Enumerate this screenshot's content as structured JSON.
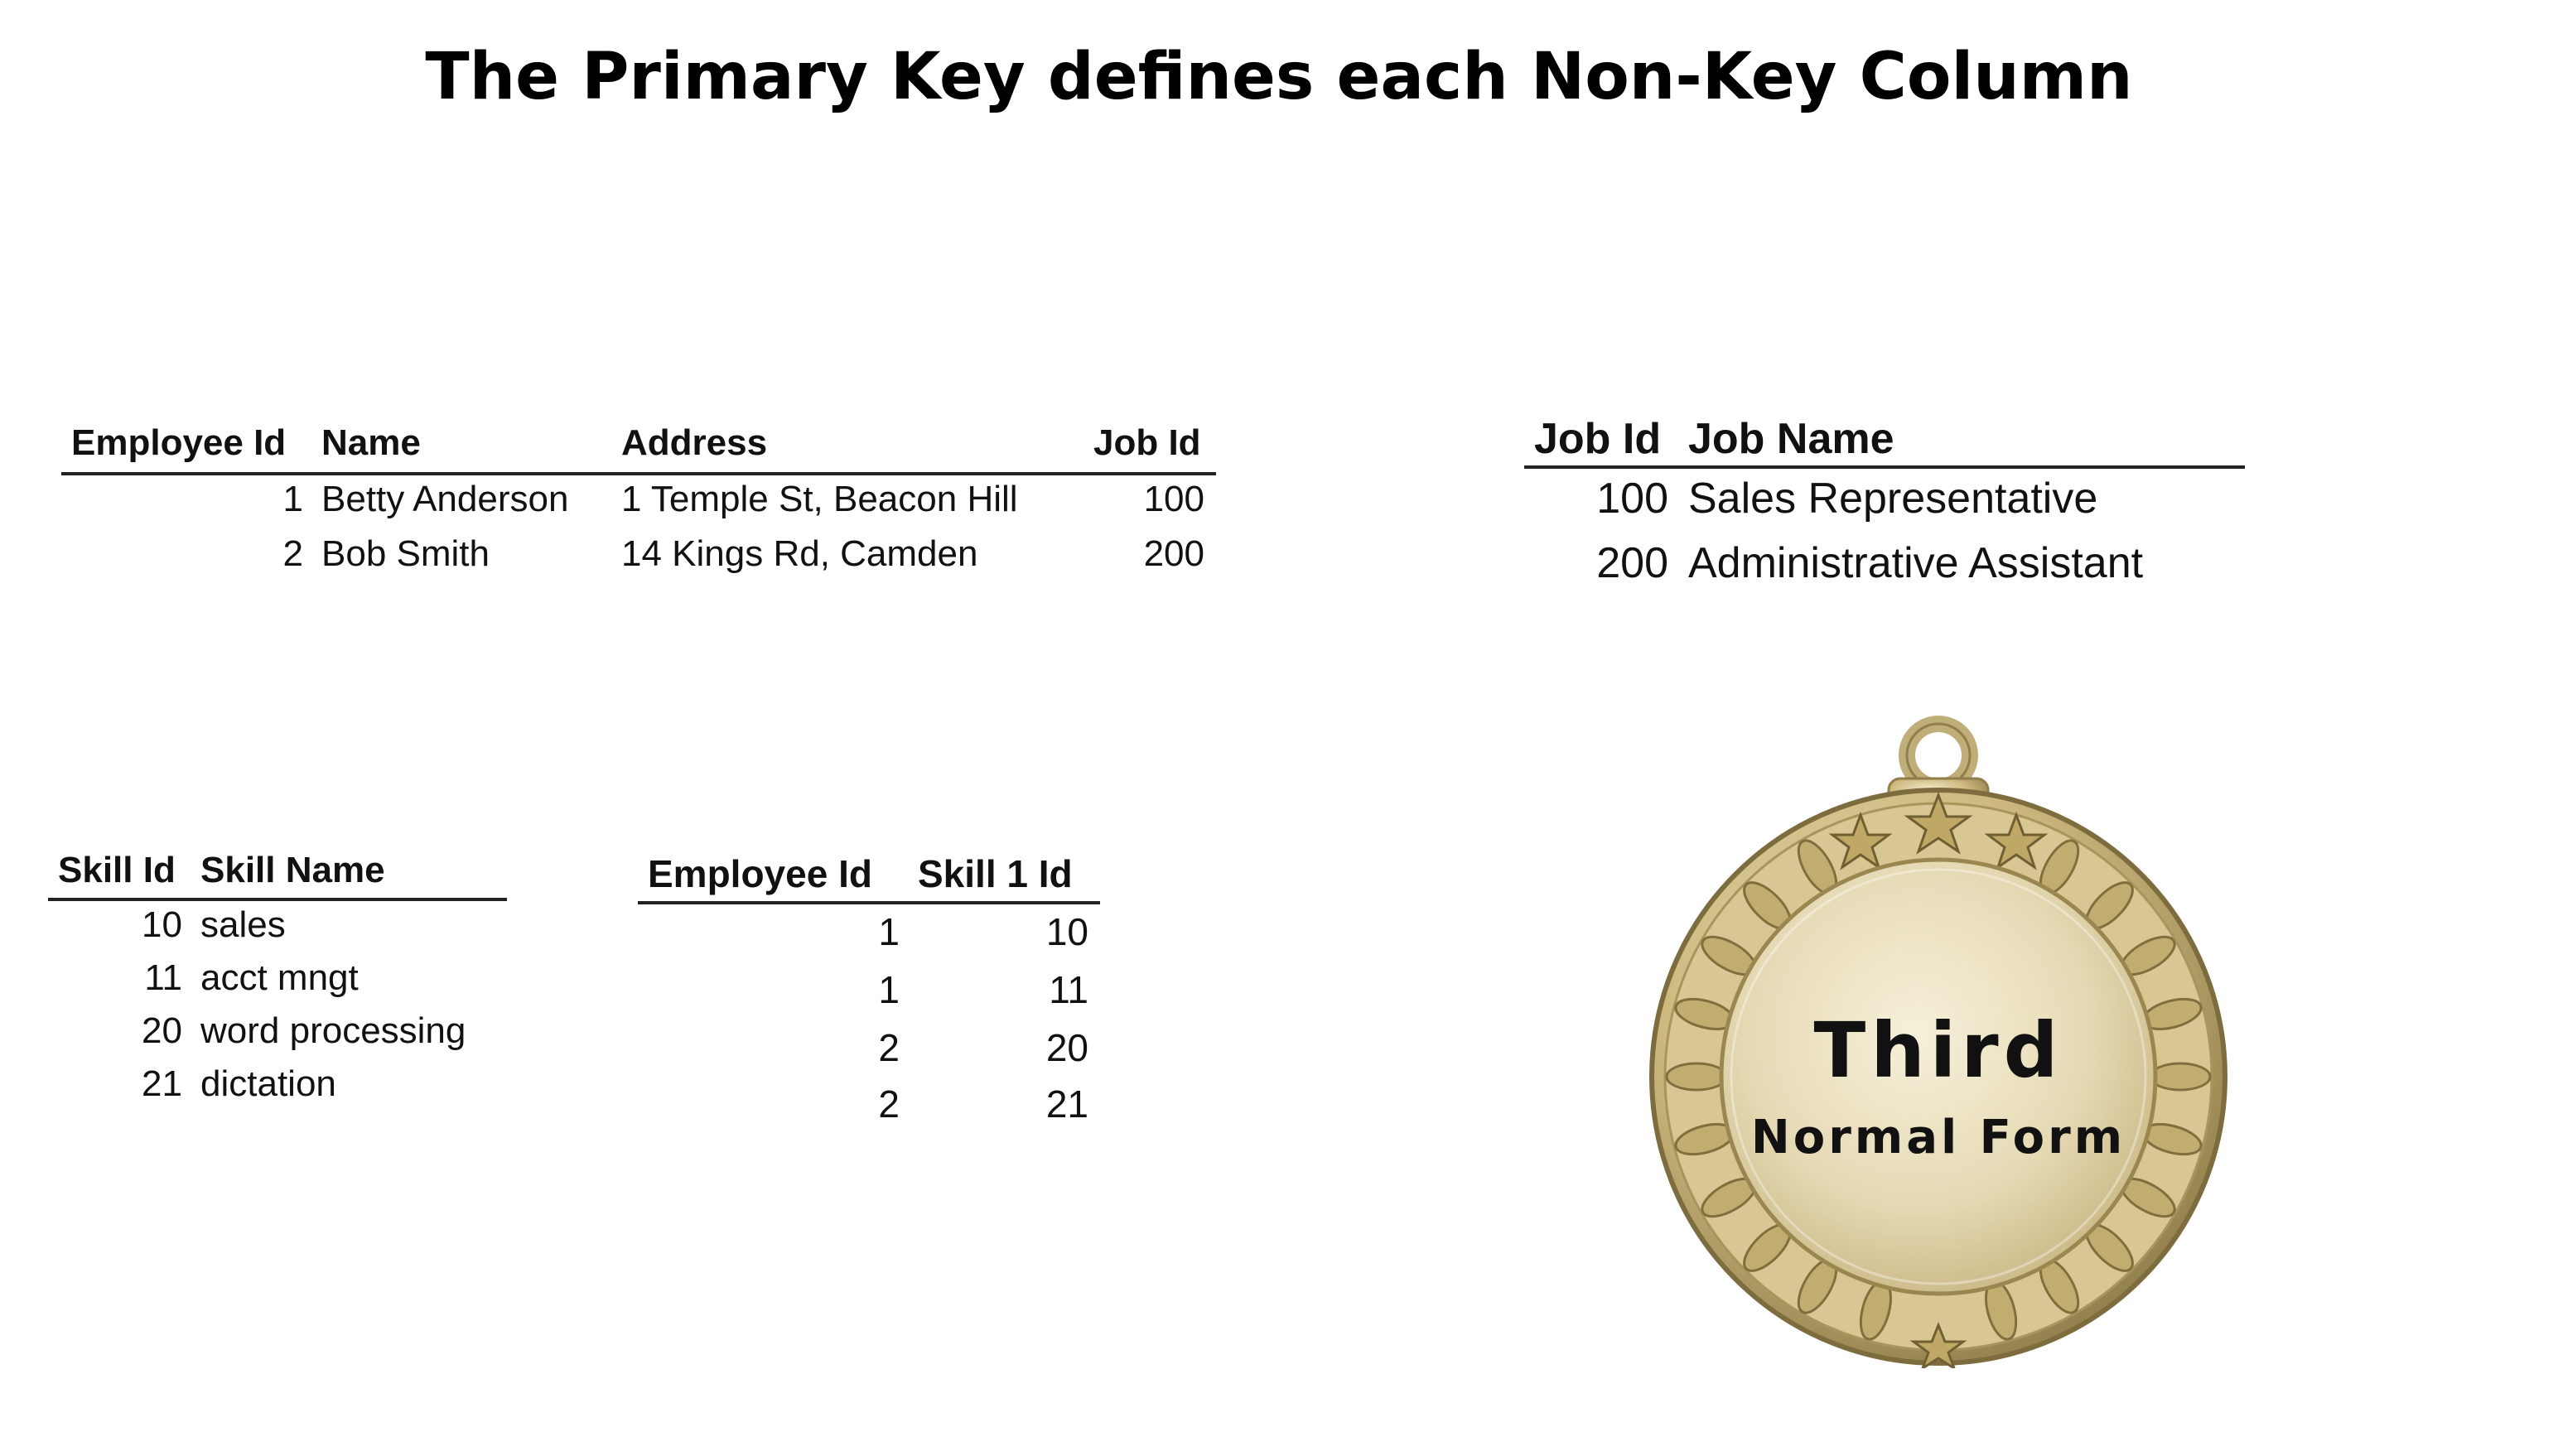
{
  "slide": {
    "title": "The Primary Key defines each Non-Key Column"
  },
  "employee_table": {
    "headers": [
      "Employee Id",
      "Name",
      "Address",
      "Job Id"
    ],
    "rows": [
      [
        "1",
        "Betty Anderson",
        "1 Temple St, Beacon Hill",
        "100"
      ],
      [
        "2",
        "Bob Smith",
        "14 Kings Rd, Camden",
        "200"
      ]
    ]
  },
  "job_table": {
    "headers": [
      "Job Id",
      "Job Name"
    ],
    "rows": [
      [
        "100",
        "Sales Representative"
      ],
      [
        "200",
        "Administrative Assistant"
      ]
    ]
  },
  "skill_table": {
    "headers": [
      "Skill Id",
      "Skill Name"
    ],
    "rows": [
      [
        "10",
        "sales"
      ],
      [
        "11",
        "acct mngt"
      ],
      [
        "20",
        "word processing"
      ],
      [
        "21",
        "dictation"
      ]
    ]
  },
  "employee_skill_table": {
    "headers": [
      "Employee Id",
      "Skill 1 Id"
    ],
    "rows": [
      [
        "1",
        "10"
      ],
      [
        "1",
        "11"
      ],
      [
        "2",
        "20"
      ],
      [
        "2",
        "21"
      ]
    ]
  },
  "medal": {
    "line1": "Third",
    "line2": "Normal Form",
    "colors": {
      "gold_light": "#f3ecd2",
      "gold_mid": "#d9c99a",
      "gold_dark": "#8f7d4a"
    }
  }
}
